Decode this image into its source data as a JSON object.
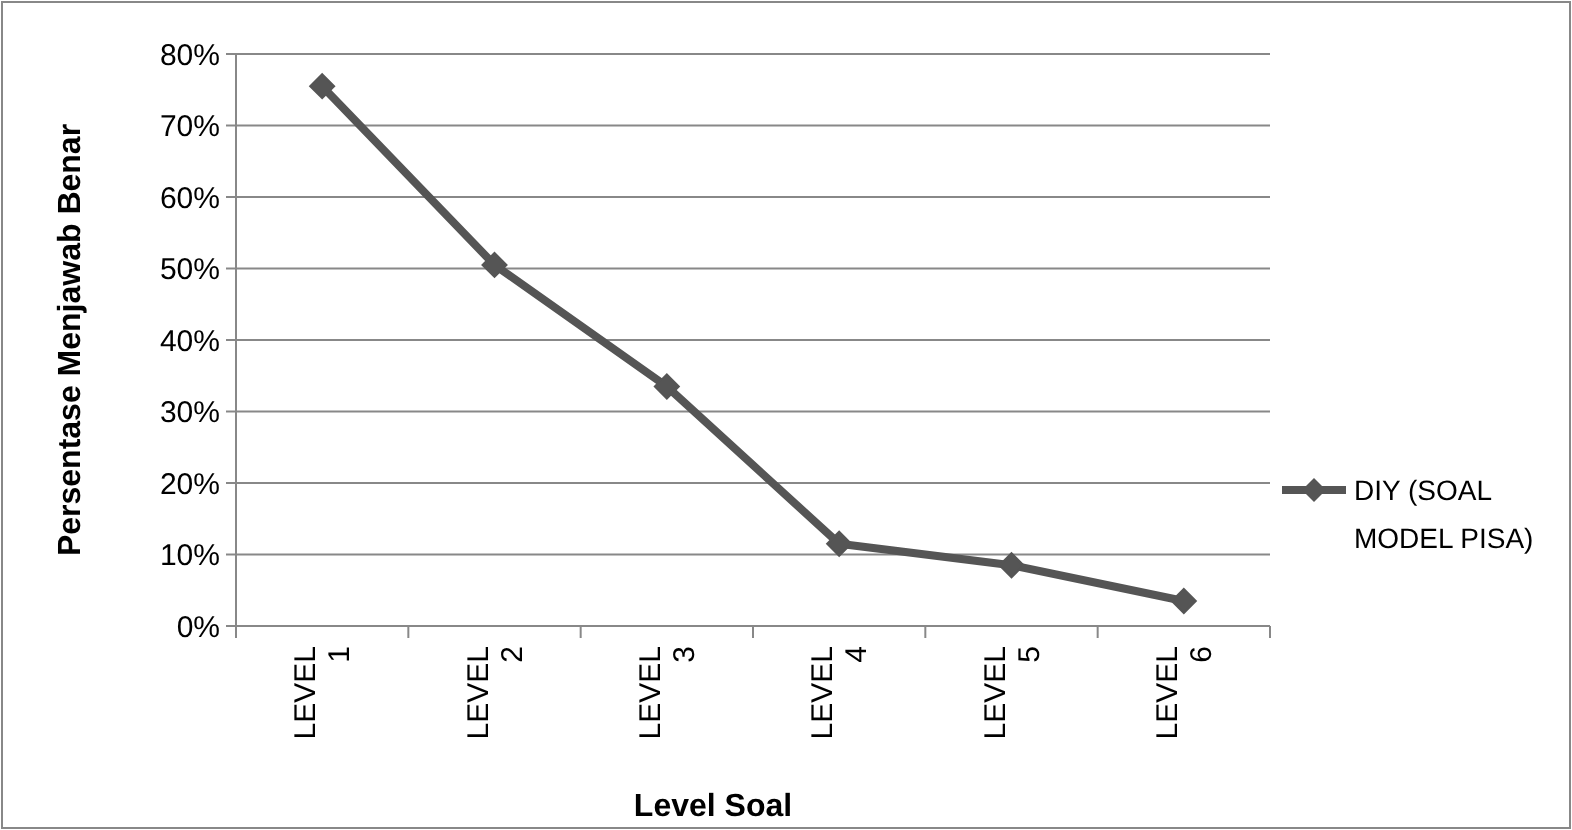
{
  "chart_data": {
    "type": "line",
    "xlabel": "Level Soal",
    "ylabel": "Persentase Menjawab Benar",
    "categories": [
      "LEVEL 1",
      "LEVEL 2",
      "LEVEL 3",
      "LEVEL 4",
      "LEVEL 5",
      "LEVEL 6"
    ],
    "series": [
      {
        "name": "DIY (SOAL MODEL PISA)",
        "color": "#555555",
        "values": [
          75.5,
          50.5,
          33.5,
          11.5,
          8.5,
          3.5
        ]
      }
    ],
    "ylim": [
      0,
      80
    ],
    "yticks": [
      {
        "value": 0,
        "label": "0%"
      },
      {
        "value": 10,
        "label": "10%"
      },
      {
        "value": 20,
        "label": "20%"
      },
      {
        "value": 30,
        "label": "30%"
      },
      {
        "value": 40,
        "label": "40%"
      },
      {
        "value": 50,
        "label": "50%"
      },
      {
        "value": 60,
        "label": "60%"
      },
      {
        "value": 70,
        "label": "70%"
      },
      {
        "value": 80,
        "label": "80%"
      }
    ],
    "grid": "y",
    "legend": "right",
    "marker": "diamond",
    "line_style": "solid"
  }
}
